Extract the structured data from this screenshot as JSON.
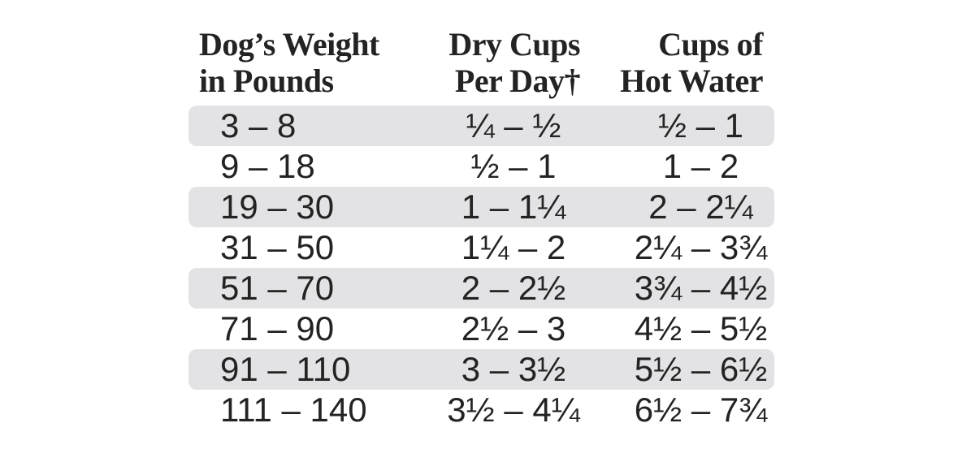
{
  "table": {
    "headers": {
      "weight_line1": "Dog’s Weight",
      "weight_line2": "in Pounds",
      "dry_cups_line1": "Dry Cups",
      "dry_cups_line2": "Per Day†",
      "hot_water_line1": "Cups of",
      "hot_water_line2": "Hot Water"
    },
    "rows": [
      {
        "weight": "3 – 8",
        "dry_cups": "¼ – ½",
        "hot_water": "½ – 1",
        "shaded": true
      },
      {
        "weight": "9 – 18",
        "dry_cups": "½ – 1",
        "hot_water": "1 – 2",
        "shaded": false
      },
      {
        "weight": "19 – 30",
        "dry_cups": "1 – 1¼",
        "hot_water": "2 – 2¼",
        "shaded": true
      },
      {
        "weight": "31 – 50",
        "dry_cups": "1¼ – 2",
        "hot_water": "2¼ – 3¾",
        "shaded": false
      },
      {
        "weight": "51 – 70",
        "dry_cups": "2 – 2½",
        "hot_water": "3¾ – 4½",
        "shaded": true
      },
      {
        "weight": "71 – 90",
        "dry_cups": "2½ – 3",
        "hot_water": "4½ – 5½",
        "shaded": false
      },
      {
        "weight": "91 – 110",
        "dry_cups": "3 – 3½",
        "hot_water": "5½ – 6½",
        "shaded": true
      },
      {
        "weight": "111 – 140",
        "dry_cups": "3½ – 4¼",
        "hot_water": "6½ – 7¾",
        "shaded": false
      }
    ],
    "colors": {
      "text": "#232323",
      "row_shade": "#e3e3e5",
      "background": "#ffffff"
    }
  }
}
